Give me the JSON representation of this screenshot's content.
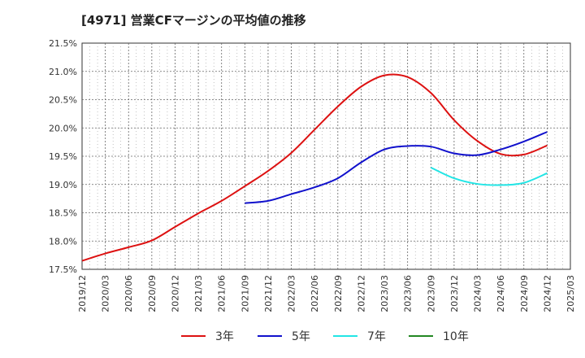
{
  "chart_data": {
    "type": "line",
    "title": "[4971]  営業CFマージンの平均値の推移",
    "y_ticks": [
      "21.5%",
      "21.0%",
      "20.5%",
      "20.0%",
      "19.5%",
      "19.0%",
      "18.5%",
      "18.0%",
      "17.5%"
    ],
    "ylim": [
      17.5,
      21.5
    ],
    "x_ticks": [
      "2019/12",
      "2020/03",
      "2020/06",
      "2020/09",
      "2020/12",
      "2021/03",
      "2021/06",
      "2021/09",
      "2021/12",
      "2022/03",
      "2022/06",
      "2022/09",
      "2022/12",
      "2023/03",
      "2023/06",
      "2023/09",
      "2023/12",
      "2024/03",
      "2024/06",
      "2024/09",
      "2024/12",
      "2025/03"
    ],
    "grid": true,
    "legend_position": "bottom",
    "series": [
      {
        "name": "3年",
        "color": "#dd1111",
        "points": [
          [
            "2019/12",
            17.65
          ],
          [
            "2020/03",
            17.78
          ],
          [
            "2020/06",
            17.89
          ],
          [
            "2020/09",
            18.01
          ],
          [
            "2020/12",
            18.25
          ],
          [
            "2021/03",
            18.49
          ],
          [
            "2021/06",
            18.71
          ],
          [
            "2021/09",
            18.97
          ],
          [
            "2021/12",
            19.24
          ],
          [
            "2022/03",
            19.56
          ],
          [
            "2022/06",
            19.97
          ],
          [
            "2022/09",
            20.38
          ],
          [
            "2022/12",
            20.73
          ],
          [
            "2023/03",
            20.93
          ],
          [
            "2023/06",
            20.9
          ],
          [
            "2023/09",
            20.62
          ],
          [
            "2023/12",
            20.14
          ],
          [
            "2024/03",
            19.77
          ],
          [
            "2024/06",
            19.54
          ],
          [
            "2024/09",
            19.53
          ],
          [
            "2024/12",
            19.69
          ]
        ]
      },
      {
        "name": "5年",
        "color": "#1111cc",
        "points": [
          [
            "2021/09",
            18.67
          ],
          [
            "2021/12",
            18.71
          ],
          [
            "2022/03",
            18.83
          ],
          [
            "2022/06",
            18.95
          ],
          [
            "2022/09",
            19.11
          ],
          [
            "2022/12",
            19.39
          ],
          [
            "2023/03",
            19.62
          ],
          [
            "2023/06",
            19.68
          ],
          [
            "2023/09",
            19.67
          ],
          [
            "2023/12",
            19.55
          ],
          [
            "2024/03",
            19.52
          ],
          [
            "2024/06",
            19.62
          ],
          [
            "2024/09",
            19.76
          ],
          [
            "2024/12",
            19.93
          ]
        ]
      },
      {
        "name": "7年",
        "color": "#22e5e5",
        "points": [
          [
            "2023/09",
            19.3
          ],
          [
            "2023/12",
            19.11
          ],
          [
            "2024/03",
            19.01
          ],
          [
            "2024/06",
            18.99
          ],
          [
            "2024/09",
            19.03
          ],
          [
            "2024/12",
            19.2
          ]
        ]
      },
      {
        "name": "10年",
        "color": "#228822",
        "points": []
      }
    ]
  }
}
